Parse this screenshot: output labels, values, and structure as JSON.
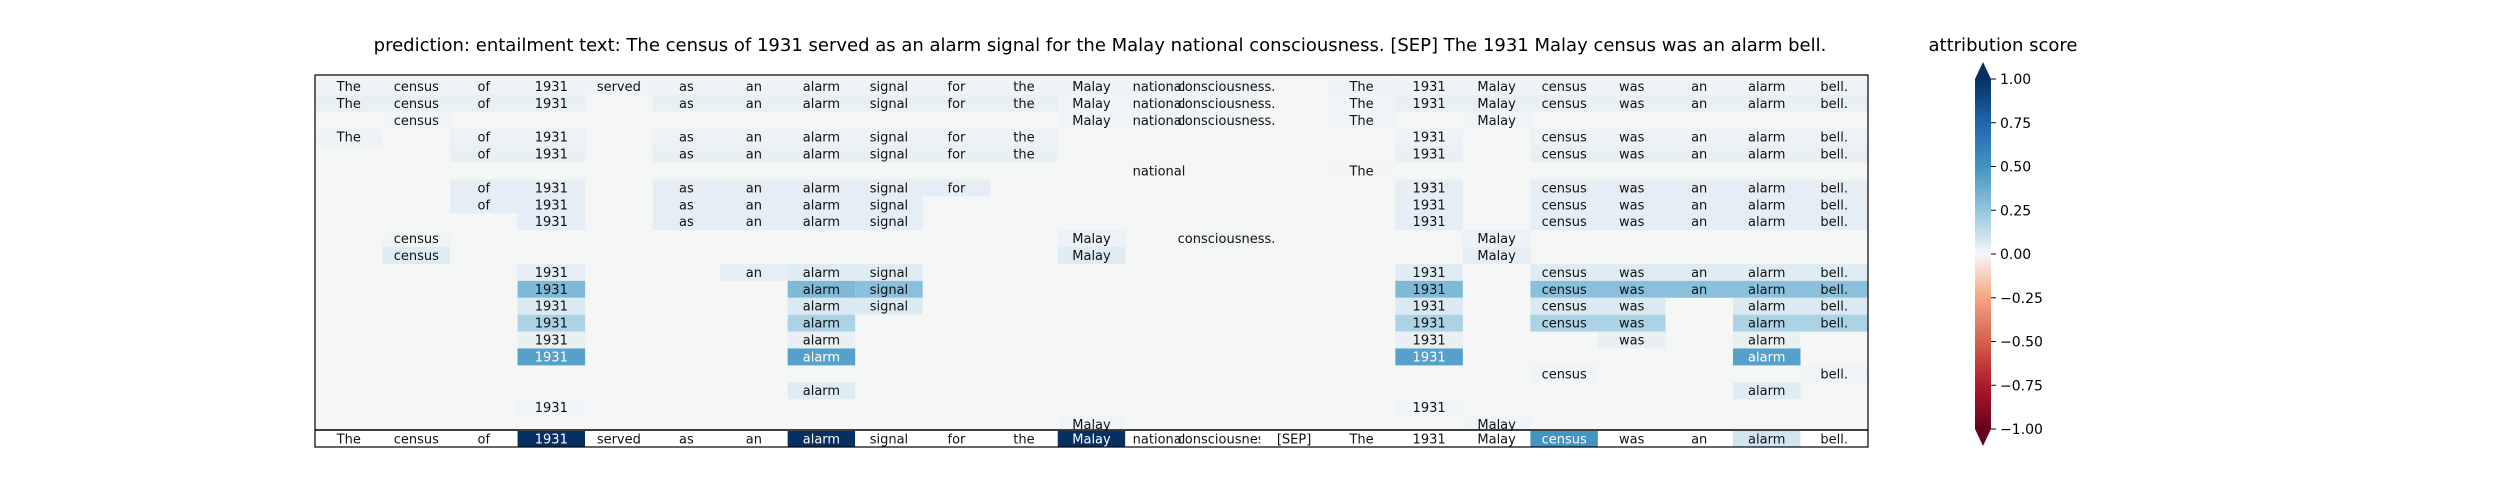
{
  "chart_data": {
    "type": "heatmap",
    "title": "prediction:  entailment      text:  The census of 1931 served as an alarm signal for the Malay national consciousness. [SEP] The 1931 Malay census was an alarm bell.",
    "colorbar": {
      "title": "attribution score",
      "range": [
        -1.0,
        1.0
      ],
      "ticks": [
        "1.00",
        "0.75",
        "0.50",
        "0.25",
        "0.00",
        "−0.25",
        "−0.50",
        "−0.75",
        "−1.00"
      ]
    },
    "tokens": [
      "The",
      "census",
      "of",
      "1931",
      "served",
      "as",
      "an",
      "alarm",
      "signal",
      "for",
      "the",
      "Malay",
      "national",
      "consciousness.",
      "[SEP]",
      "The",
      "1931",
      "Malay",
      "census",
      "was",
      "an",
      "alarm",
      "bell."
    ],
    "layer_rows": [
      {
        "tokens": [
          "The",
          "census",
          "of",
          "1931",
          "served",
          "as",
          "an",
          "alarm",
          "signal",
          "for",
          "the",
          "Malay",
          "national",
          "consciousness.",
          "",
          "The",
          "1931",
          "Malay",
          "census",
          "was",
          "an",
          "alarm",
          "bell."
        ],
        "scores": [
          0.05,
          0.05,
          0.05,
          0.05,
          0.03,
          0.05,
          0.05,
          0.05,
          0.05,
          0.05,
          0.05,
          0.05,
          0.05,
          0.05,
          0.0,
          0.05,
          0.05,
          0.05,
          0.05,
          0.05,
          0.05,
          0.05,
          0.05
        ]
      },
      {
        "tokens": [
          "The",
          "census",
          "of",
          "1931",
          "",
          "as",
          "an",
          "alarm",
          "signal",
          "for",
          "the",
          "Malay",
          "national",
          "consciousness.",
          "",
          "The",
          "1931",
          "Malay",
          "census",
          "was",
          "an",
          "alarm",
          "bell."
        ],
        "scores": [
          0.08,
          0.08,
          0.08,
          0.08,
          0,
          0.08,
          0.08,
          0.08,
          0.08,
          0.08,
          0.08,
          0.03,
          0.03,
          0.03,
          0,
          0.03,
          0.08,
          0.08,
          0.08,
          0.08,
          0.08,
          0.08,
          0.08
        ]
      },
      {
        "tokens": [
          "",
          "census",
          "",
          "",
          "",
          "",
          "",
          "",
          "",
          "",
          "",
          "Malay",
          "national",
          "consciousness.",
          "",
          "The",
          "",
          "Malay",
          "",
          "",
          "",
          "",
          ""
        ],
        "scores": [
          0,
          0.03,
          0,
          0,
          0,
          0,
          0,
          0,
          0,
          0,
          0,
          0.03,
          0.03,
          0.03,
          0,
          0.03,
          0,
          0.03,
          0,
          0,
          0,
          0,
          0
        ]
      },
      {
        "tokens": [
          "The",
          "",
          "of",
          "1931",
          "",
          "as",
          "an",
          "alarm",
          "signal",
          "for",
          "the",
          "",
          "",
          "",
          "",
          "",
          "1931",
          "",
          "census",
          "was",
          "an",
          "alarm",
          "bell."
        ],
        "scores": [
          0.05,
          0,
          0.06,
          0.06,
          0,
          0.06,
          0.06,
          0.06,
          0.06,
          0.06,
          0.06,
          0,
          0,
          0,
          0,
          0,
          0.06,
          0,
          0.06,
          0.06,
          0.06,
          0.06,
          0.06
        ]
      },
      {
        "tokens": [
          "",
          "",
          "of",
          "1931",
          "",
          "as",
          "an",
          "alarm",
          "signal",
          "for",
          "the",
          "",
          "",
          "",
          "",
          "",
          "1931",
          "",
          "census",
          "was",
          "an",
          "alarm",
          "bell."
        ],
        "scores": [
          0,
          0,
          0.08,
          0.08,
          0,
          0.08,
          0.08,
          0.08,
          0.08,
          0.08,
          0.08,
          0,
          0,
          0,
          0,
          0,
          0.08,
          0,
          0.08,
          0.08,
          0.08,
          0.08,
          0.08
        ]
      },
      {
        "tokens": [
          "",
          "",
          "",
          "",
          "",
          "",
          "",
          "",
          "",
          "",
          "",
          "",
          "national",
          "",
          "",
          "The",
          "",
          "",
          "",
          "",
          "",
          "",
          ""
        ],
        "scores": [
          0,
          0,
          0,
          0,
          0,
          0,
          0,
          0,
          0,
          0,
          0,
          0,
          0.02,
          0,
          0,
          0.02,
          0,
          0,
          0,
          0,
          0,
          0,
          0
        ]
      },
      {
        "tokens": [
          "",
          "",
          "of",
          "1931",
          "",
          "as",
          "an",
          "alarm",
          "signal",
          "for",
          "",
          "",
          "",
          "",
          "",
          "",
          "1931",
          "",
          "census",
          "was",
          "an",
          "alarm",
          "bell."
        ],
        "scores": [
          0,
          0,
          0.1,
          0.1,
          0,
          0.1,
          0.1,
          0.1,
          0.1,
          0.1,
          0,
          0,
          0,
          0,
          0,
          0,
          0.1,
          0,
          0.1,
          0.1,
          0.1,
          0.1,
          0.1
        ]
      },
      {
        "tokens": [
          "",
          "",
          "of",
          "1931",
          "",
          "as",
          "an",
          "alarm",
          "signal",
          "",
          "",
          "",
          "",
          "",
          "",
          "",
          "1931",
          "",
          "census",
          "was",
          "an",
          "alarm",
          "bell."
        ],
        "scores": [
          0,
          0,
          0.1,
          0.1,
          0,
          0.1,
          0.1,
          0.1,
          0.1,
          0,
          0,
          0,
          0,
          0,
          0,
          0,
          0.1,
          0,
          0.1,
          0.1,
          0.1,
          0.1,
          0.1
        ]
      },
      {
        "tokens": [
          "",
          "",
          "",
          "1931",
          "",
          "as",
          "an",
          "alarm",
          "signal",
          "",
          "",
          "",
          "",
          "",
          "",
          "",
          "1931",
          "",
          "census",
          "was",
          "an",
          "alarm",
          "bell."
        ],
        "scores": [
          0,
          0,
          0,
          0.1,
          0,
          0.1,
          0.1,
          0.1,
          0.1,
          0,
          0,
          0,
          0,
          0,
          0,
          0,
          0.1,
          0,
          0.1,
          0.1,
          0.1,
          0.1,
          0.1
        ]
      },
      {
        "tokens": [
          "",
          "census",
          "",
          "",
          "",
          "",
          "",
          "",
          "",
          "",
          "",
          "Malay",
          "",
          "consciousness.",
          "",
          "",
          "",
          "Malay",
          "",
          "",
          "",
          "",
          ""
        ],
        "scores": [
          0,
          0.03,
          0,
          0,
          0,
          0,
          0,
          0,
          0,
          0,
          0,
          0.06,
          0,
          0.03,
          0,
          0,
          0,
          0.06,
          0,
          0,
          0,
          0,
          0
        ]
      },
      {
        "tokens": [
          "",
          "census",
          "",
          "",
          "",
          "",
          "",
          "",
          "",
          "",
          "",
          "Malay",
          "",
          "",
          "",
          "",
          "",
          "Malay",
          "",
          "",
          "",
          "",
          ""
        ],
        "scores": [
          0,
          0.12,
          0,
          0,
          0,
          0,
          0,
          0,
          0,
          0,
          0,
          0.12,
          0,
          0,
          0,
          0,
          0,
          0.1,
          0,
          0,
          0,
          0,
          0
        ]
      },
      {
        "tokens": [
          "",
          "",
          "",
          "1931",
          "",
          "",
          "an",
          "alarm",
          "signal",
          "",
          "",
          "",
          "",
          "",
          "",
          "",
          "1931",
          "",
          "census",
          "was",
          "an",
          "alarm",
          "bell."
        ],
        "scores": [
          0,
          0,
          0,
          0.1,
          0,
          0,
          0.1,
          0.12,
          0.12,
          0,
          0,
          0,
          0,
          0,
          0,
          0,
          0.12,
          0,
          0.12,
          0.12,
          0.12,
          0.12,
          0.12
        ]
      },
      {
        "tokens": [
          "",
          "",
          "",
          "1931",
          "",
          "",
          "",
          "alarm",
          "signal",
          "",
          "",
          "",
          "",
          "",
          "",
          "",
          "1931",
          "",
          "census",
          "was",
          "an",
          "alarm",
          "bell."
        ],
        "scores": [
          0,
          0,
          0,
          0.45,
          0,
          0,
          0,
          0.45,
          0.42,
          0,
          0,
          0,
          0,
          0,
          0,
          0,
          0.45,
          0,
          0.42,
          0.42,
          0.42,
          0.42,
          0.42
        ]
      },
      {
        "tokens": [
          "",
          "",
          "",
          "1931",
          "",
          "",
          "",
          "alarm",
          "signal",
          "",
          "",
          "",
          "",
          "",
          "",
          "",
          "1931",
          "",
          "census",
          "was",
          "",
          "alarm",
          "bell."
        ],
        "scores": [
          0,
          0,
          0,
          0.15,
          0,
          0,
          0,
          0.15,
          0.15,
          0,
          0,
          0,
          0,
          0,
          0,
          0,
          0.15,
          0,
          0.15,
          0.15,
          0,
          0.15,
          0.15
        ]
      },
      {
        "tokens": [
          "",
          "",
          "",
          "1931",
          "",
          "",
          "",
          "alarm",
          "",
          "",
          "",
          "",
          "",
          "",
          "",
          "",
          "1931",
          "",
          "census",
          "was",
          "",
          "alarm",
          "bell."
        ],
        "scores": [
          0,
          0,
          0,
          0.32,
          0,
          0,
          0,
          0.32,
          0,
          0,
          0,
          0,
          0,
          0,
          0,
          0,
          0.32,
          0,
          0.32,
          0.32,
          0,
          0.32,
          0.32
        ]
      },
      {
        "tokens": [
          "",
          "",
          "",
          "1931",
          "",
          "",
          "",
          "alarm",
          "",
          "",
          "",
          "",
          "",
          "",
          "",
          "",
          "1931",
          "",
          "",
          "was",
          "",
          "alarm",
          ""
        ],
        "scores": [
          0,
          0,
          0,
          0.08,
          0,
          0,
          0,
          0.08,
          0,
          0,
          0,
          0,
          0,
          0,
          0,
          0,
          0.08,
          0,
          0,
          0.08,
          0,
          0.08,
          0
        ]
      },
      {
        "tokens": [
          "",
          "",
          "",
          "1931",
          "",
          "",
          "",
          "alarm",
          "",
          "",
          "",
          "",
          "",
          "",
          "",
          "",
          "1931",
          "",
          "",
          "",
          "",
          "alarm",
          ""
        ],
        "scores": [
          0,
          0,
          0,
          0.55,
          0,
          0,
          0,
          0.55,
          0,
          0,
          0,
          0,
          0,
          0,
          0,
          0,
          0.55,
          0,
          0,
          0,
          0,
          0.55,
          0
        ]
      },
      {
        "tokens": [
          "",
          "",
          "",
          "",
          "",
          "",
          "",
          "",
          "",
          "",
          "",
          "",
          "",
          "",
          "",
          "",
          "",
          "",
          "census",
          "",
          "",
          "",
          "bell."
        ],
        "scores": [
          0,
          0,
          0,
          0,
          0,
          0,
          0,
          0,
          0,
          0,
          0,
          0,
          0,
          0,
          0,
          0,
          0,
          0,
          0.03,
          0,
          0,
          0,
          0.03
        ]
      },
      {
        "tokens": [
          "",
          "",
          "",
          "",
          "",
          "",
          "",
          "alarm",
          "",
          "",
          "",
          "",
          "",
          "",
          "",
          "",
          "",
          "",
          "",
          "",
          "",
          "alarm",
          ""
        ],
        "scores": [
          0,
          0,
          0,
          0,
          0,
          0,
          0,
          0.12,
          0,
          0,
          0,
          0,
          0,
          0,
          0,
          0,
          0,
          0,
          0,
          0,
          0,
          0.12,
          0
        ]
      },
      {
        "tokens": [
          "",
          "",
          "",
          "1931",
          "",
          "",
          "",
          "",
          "",
          "",
          "",
          "",
          "",
          "",
          "",
          "",
          "1931",
          "",
          "",
          "",
          "",
          "",
          ""
        ],
        "scores": [
          0,
          0,
          0,
          0.03,
          0,
          0,
          0,
          0,
          0,
          0,
          0,
          0,
          0,
          0,
          0,
          0,
          0.03,
          0,
          0,
          0,
          0,
          0,
          0
        ]
      },
      {
        "tokens": [
          "",
          "",
          "",
          "",
          "",
          "",
          "",
          "",
          "",
          "",
          "",
          "Malay",
          "",
          "",
          "",
          "",
          "",
          "Malay",
          "",
          "",
          "",
          "",
          ""
        ],
        "scores": [
          0,
          0,
          0,
          0,
          0,
          0,
          0,
          0,
          0,
          0,
          0,
          0.03,
          0,
          0,
          0,
          0,
          0,
          0.03,
          0,
          0,
          0,
          0,
          0
        ]
      }
    ],
    "summary_row": {
      "tokens": [
        "The",
        "census",
        "of",
        "1931",
        "served",
        "as",
        "an",
        "alarm",
        "signal",
        "for",
        "the",
        "Malay",
        "national",
        "consciousness.",
        "[SEP]",
        "The",
        "1931",
        "Malay",
        "census",
        "was",
        "an",
        "alarm",
        "bell."
      ],
      "scores": [
        0,
        0,
        0,
        1.0,
        0,
        0,
        0,
        1.0,
        0,
        0,
        0,
        1.0,
        0,
        0,
        0,
        0,
        0,
        0,
        0.6,
        0,
        0,
        0.2,
        0
      ]
    }
  }
}
